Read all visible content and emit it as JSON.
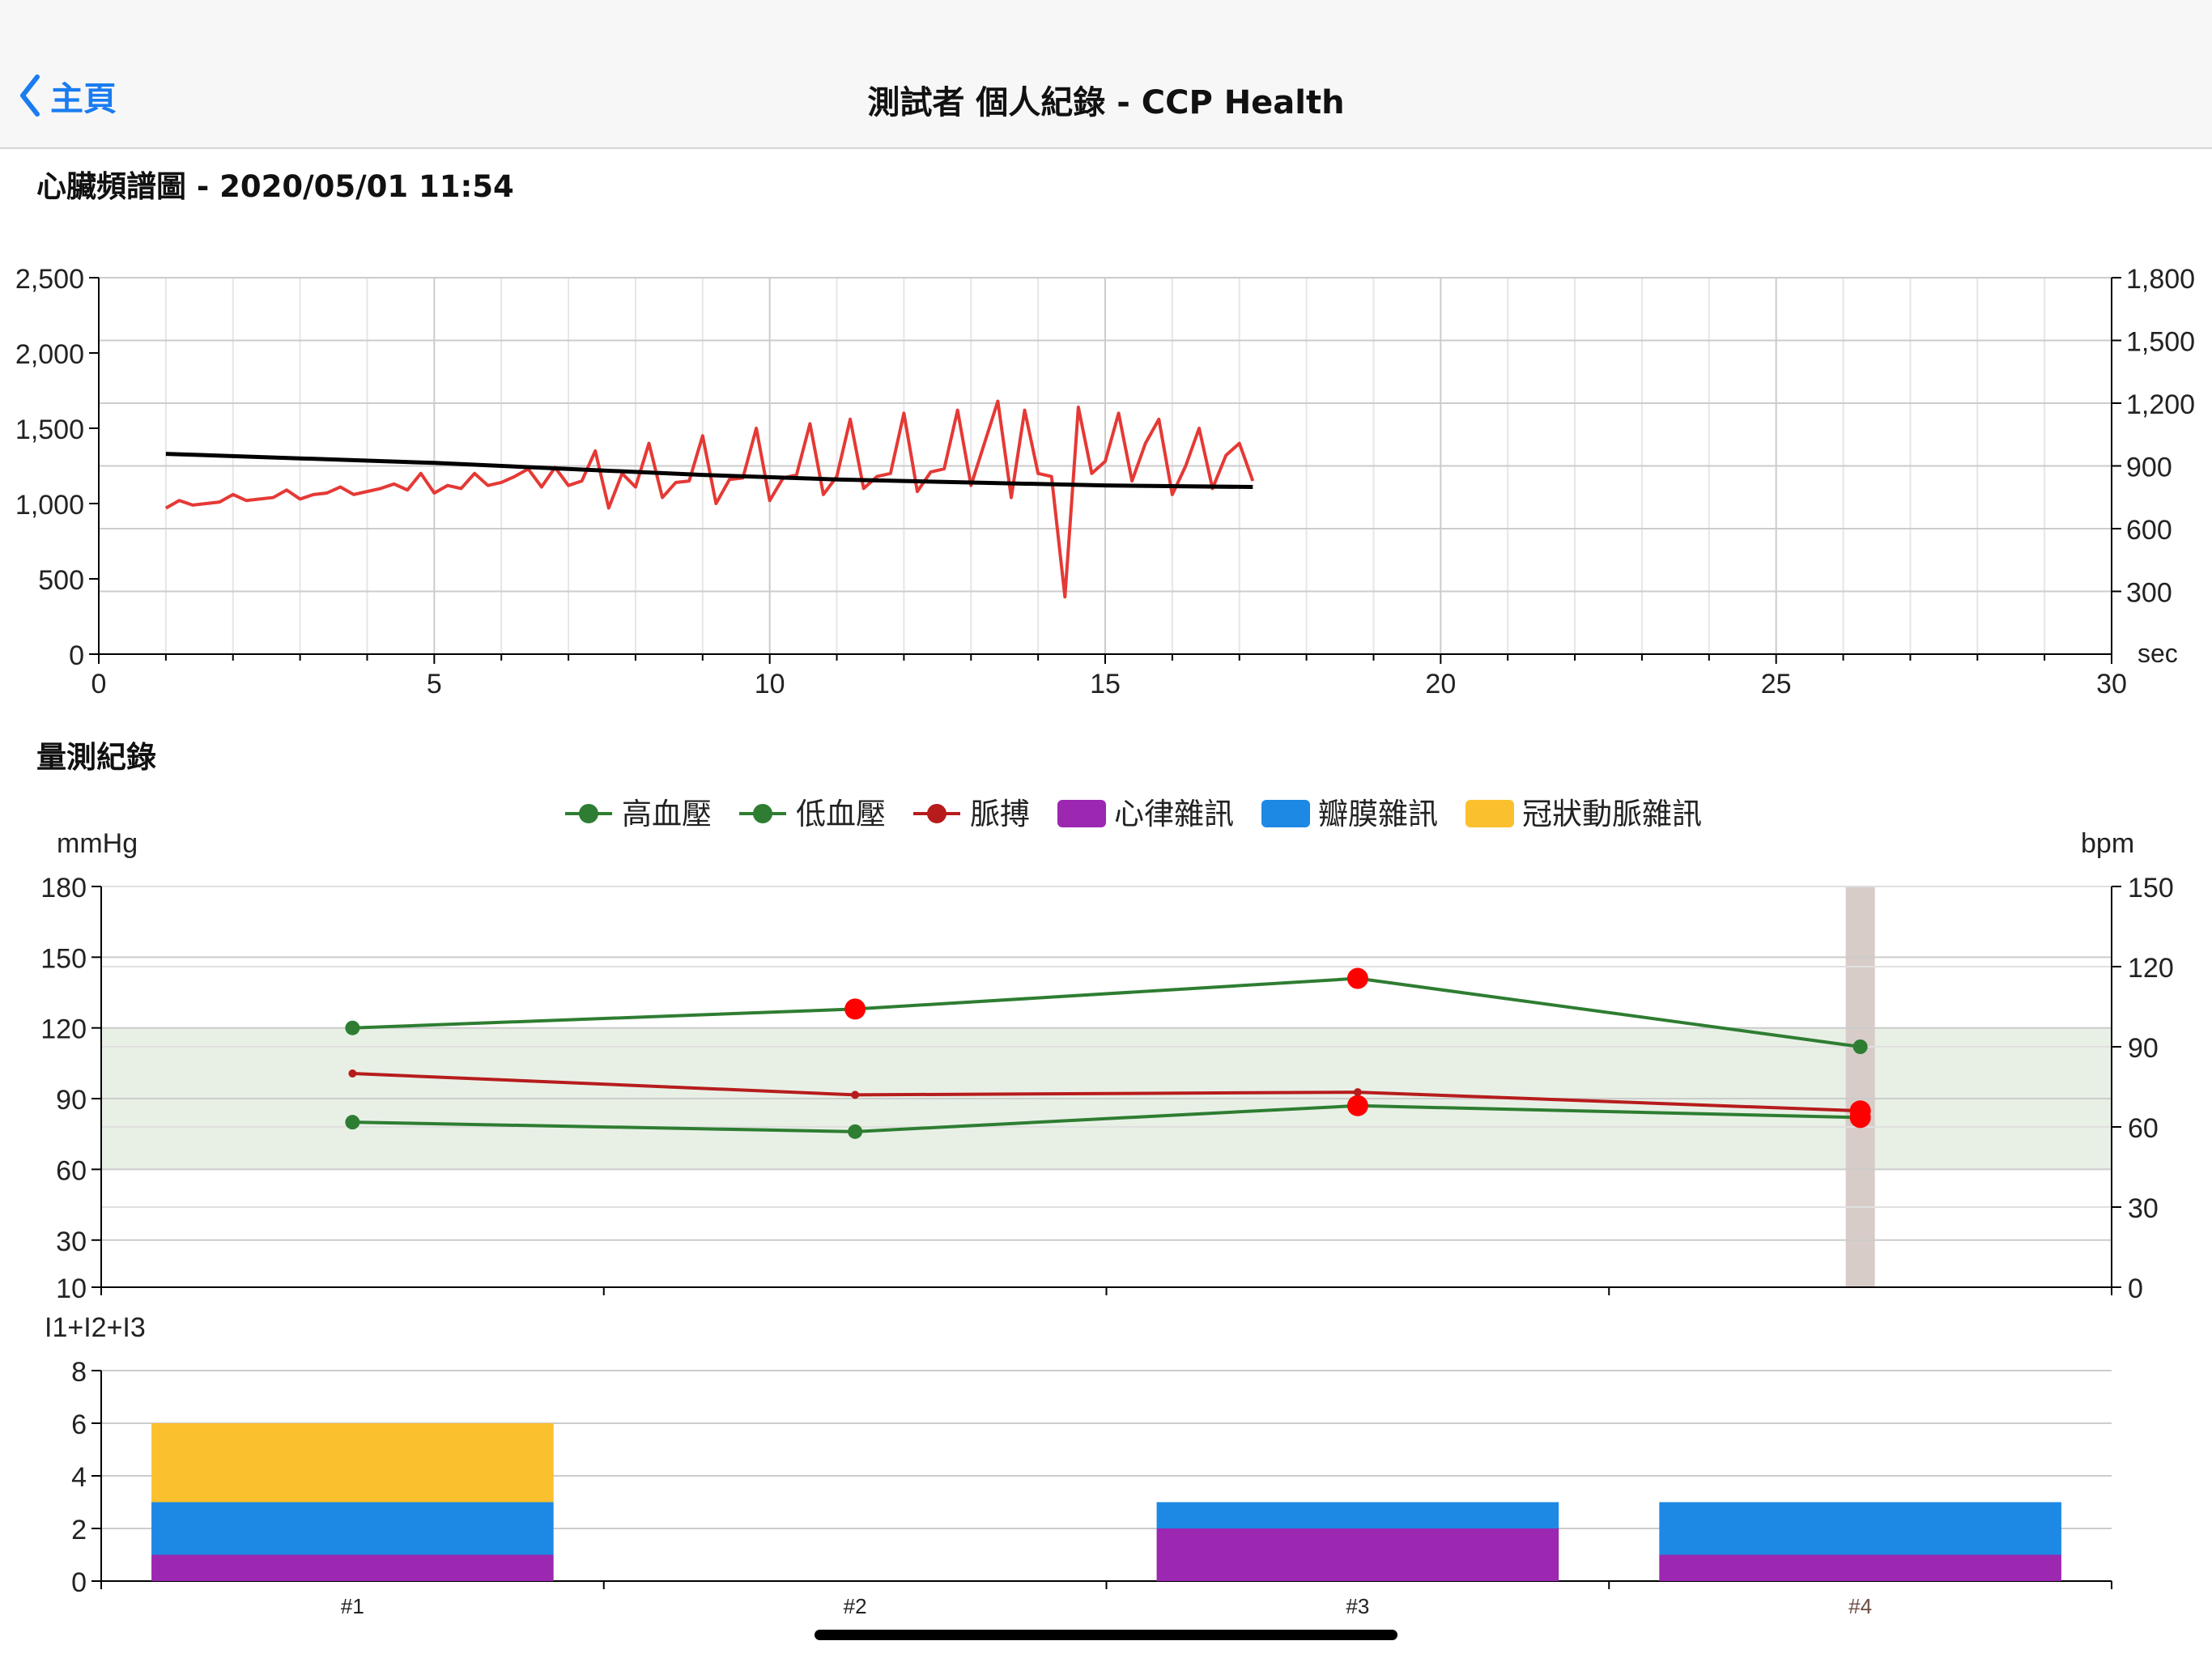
{
  "nav": {
    "back_label": "主頁",
    "title": "測試者 個人紀錄 - CCP Health"
  },
  "colors": {
    "accent": "#1a7cf0",
    "systolic": "#2e7d32",
    "diastolic": "#2e7d32",
    "pulse": "#b71c1c",
    "highlight_marker": "#ff0000",
    "heart_rhythm_noise": "#9c27b0",
    "valve_noise": "#1e88e5",
    "coronary_noise": "#fbc02d",
    "ecg_red": "#e53935",
    "ecg_black": "#000000"
  },
  "spectrum": {
    "heading": "心臟頻譜圖 - 2020/05/01 11:54",
    "right_axis_unit": "sec"
  },
  "records": {
    "heading": "量測紀錄",
    "left_unit": "mmHg",
    "right_unit": "bpm",
    "bar_axis_label": "I1+I2+I3"
  },
  "chart_data": [
    {
      "type": "line",
      "x_ticks": [
        "0",
        "5",
        "10",
        "15",
        "20",
        "25",
        "30"
      ],
      "y_ticks_left": [
        "0",
        "500",
        "1,000",
        "1,500",
        "2,000",
        "2,500"
      ],
      "y_ticks_right": [
        "300",
        "600",
        "900",
        "1,200",
        "1,500",
        "1,800"
      ],
      "xlim": [
        0,
        30
      ],
      "ylim": [
        0,
        2500
      ],
      "ylim_right": [
        0,
        1800
      ],
      "grid": true,
      "series": [
        {
          "color": "#e53935",
          "x": [
            1.0,
            1.2,
            1.4,
            1.6,
            1.8,
            2.0,
            2.2,
            2.4,
            2.6,
            2.8,
            3.0,
            3.2,
            3.4,
            3.6,
            3.8,
            4.0,
            4.2,
            4.4,
            4.6,
            4.8,
            5.0,
            5.2,
            5.4,
            5.6,
            5.8,
            6.0,
            6.2,
            6.4,
            6.6,
            6.8,
            7.0,
            7.2,
            7.4,
            7.6,
            7.8,
            8.0,
            8.2,
            8.4,
            8.6,
            8.8,
            9.0,
            9.2,
            9.4,
            9.6,
            9.8,
            10.0,
            10.2,
            10.4,
            10.6,
            10.8,
            11.0,
            11.2,
            11.4,
            11.6,
            11.8,
            12.0,
            12.2,
            12.4,
            12.6,
            12.8,
            13.0,
            13.2,
            13.4,
            13.6,
            13.8,
            14.0,
            14.2,
            14.4,
            14.6,
            14.8,
            15.0,
            15.2,
            15.4,
            15.6,
            15.8,
            16.0,
            16.2,
            16.4,
            16.6,
            16.8,
            17.0,
            17.2
          ],
          "values": [
            970,
            1020,
            990,
            1000,
            1010,
            1060,
            1020,
            1030,
            1040,
            1090,
            1030,
            1060,
            1070,
            1110,
            1060,
            1080,
            1100,
            1130,
            1090,
            1200,
            1070,
            1120,
            1100,
            1200,
            1120,
            1140,
            1180,
            1230,
            1110,
            1240,
            1120,
            1150,
            1350,
            970,
            1200,
            1110,
            1400,
            1040,
            1140,
            1150,
            1450,
            1000,
            1160,
            1170,
            1500,
            1020,
            1170,
            1190,
            1530,
            1060,
            1180,
            1560,
            1100,
            1180,
            1200,
            1600,
            1080,
            1210,
            1230,
            1620,
            1120,
            1400,
            1680,
            1040,
            1620,
            1200,
            1180,
            380,
            1640,
            1200,
            1280,
            1600,
            1150,
            1400,
            1560,
            1060,
            1250,
            1500,
            1100,
            1320,
            1400,
            1150
          ],
          "marker": "none"
        },
        {
          "color": "#000000",
          "x": [
            1.0,
            3.0,
            5.0,
            7.0,
            9.0,
            11.0,
            13.0,
            15.0,
            17.2
          ],
          "values": [
            1330,
            1300,
            1270,
            1230,
            1190,
            1160,
            1140,
            1120,
            1110
          ],
          "marker": "none"
        }
      ]
    },
    {
      "type": "line",
      "categories": [
        "#1",
        "#2",
        "#3",
        "#4"
      ],
      "y_ticks_left": [
        "10",
        "30",
        "60",
        "90",
        "120",
        "150",
        "180"
      ],
      "y_ticks_right": [
        "0",
        "30",
        "60",
        "90",
        "120",
        "150"
      ],
      "ylim": [
        10,
        180
      ],
      "ylim_right": [
        0,
        150
      ],
      "normal_band_mmHg": [
        [
          60,
          80
        ],
        [
          80,
          120
        ]
      ],
      "selected_category": "#4",
      "grid": true,
      "legend_position": "top-center",
      "series": [
        {
          "name": "高血壓",
          "axis": "left",
          "values": [
            120,
            128,
            141,
            112
          ],
          "alert": [
            false,
            true,
            true,
            false
          ]
        },
        {
          "name": "低血壓",
          "axis": "left",
          "values": [
            80,
            76,
            87,
            82
          ],
          "alert": [
            false,
            false,
            true,
            true
          ]
        },
        {
          "name": "脈搏",
          "axis": "right",
          "values": [
            80,
            72,
            73,
            66
          ],
          "alert": [
            false,
            false,
            false,
            true
          ]
        }
      ]
    },
    {
      "type": "bar",
      "stacked": true,
      "categories": [
        "#1",
        "#2",
        "#3",
        "#4"
      ],
      "y_ticks": [
        "0",
        "2",
        "4",
        "6",
        "8"
      ],
      "ylim": [
        0,
        8
      ],
      "ylabel": "I1+I2+I3",
      "grid": true,
      "series": [
        {
          "name": "心律雜訊",
          "values": [
            1,
            0,
            2,
            1
          ]
        },
        {
          "name": "瓣膜雜訊",
          "values": [
            2,
            0,
            1,
            2
          ]
        },
        {
          "name": "冠狀動脈雜訊",
          "values": [
            3,
            0,
            0,
            0
          ]
        }
      ]
    }
  ]
}
